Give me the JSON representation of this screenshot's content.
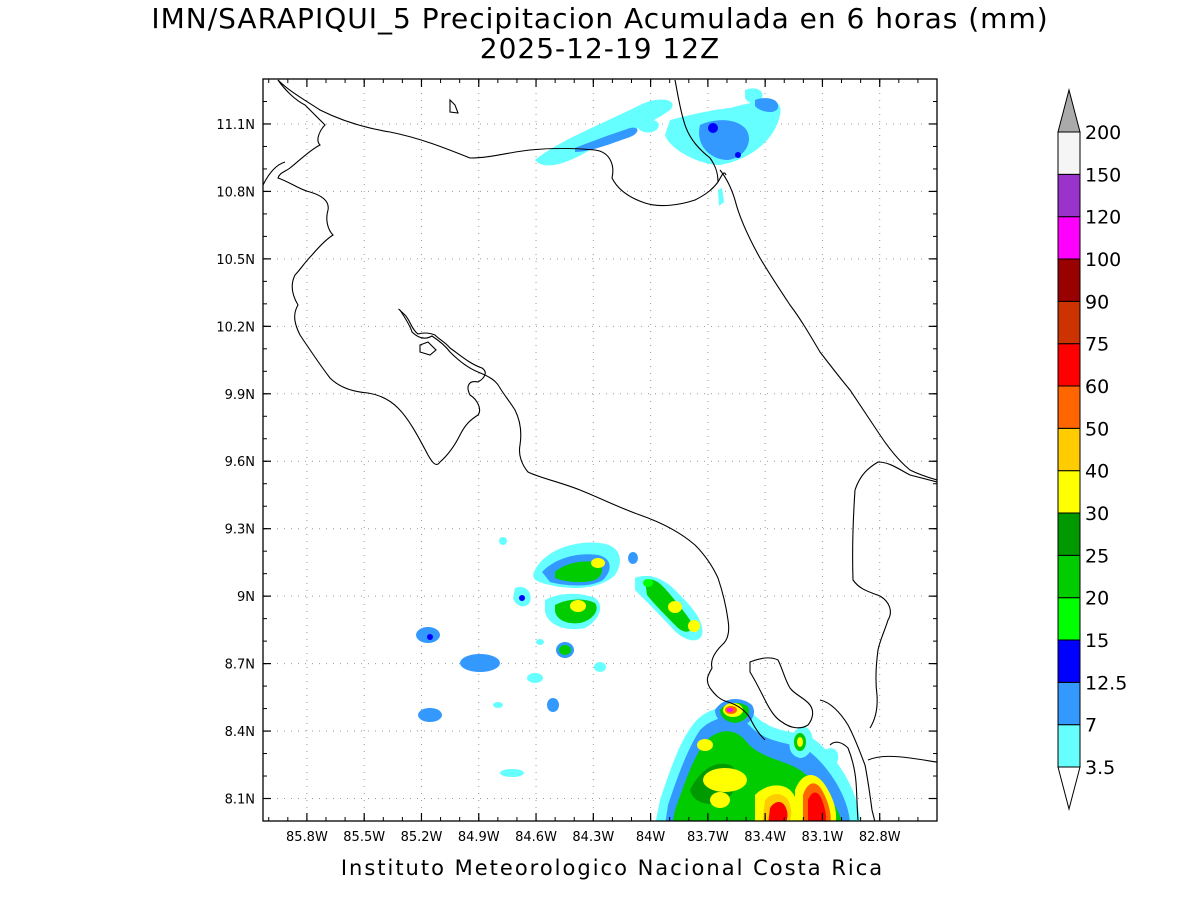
{
  "title": {
    "line1": "IMN/SARAPIQUI_5 Precipitacion Acumulada en 6 horas (mm)",
    "line2": "2025-12-19 12Z"
  },
  "footer": "Instituto Meteorologico Nacional Costa Rica",
  "map": {
    "lon_range": [
      -86.03,
      -82.5
    ],
    "lat_range": [
      8.0,
      11.3
    ],
    "lon_ticks": [
      {
        "value": -85.8,
        "label": "85.8W"
      },
      {
        "value": -85.5,
        "label": "85.5W"
      },
      {
        "value": -85.2,
        "label": "85.2W"
      },
      {
        "value": -84.9,
        "label": "84.9W"
      },
      {
        "value": -84.6,
        "label": "84.6W"
      },
      {
        "value": -84.3,
        "label": "84.3W"
      },
      {
        "value": -84.0,
        "label": "84W"
      },
      {
        "value": -83.7,
        "label": "83.7W"
      },
      {
        "value": -83.4,
        "label": "83.4W"
      },
      {
        "value": -83.1,
        "label": "83.1W"
      },
      {
        "value": -82.8,
        "label": "82.8W"
      }
    ],
    "lat_ticks": [
      {
        "value": 8.1,
        "label": "8.1N"
      },
      {
        "value": 8.4,
        "label": "8.4N"
      },
      {
        "value": 8.7,
        "label": "8.7N"
      },
      {
        "value": 9.0,
        "label": "9N"
      },
      {
        "value": 9.3,
        "label": "9.3N"
      },
      {
        "value": 9.6,
        "label": "9.6N"
      },
      {
        "value": 9.9,
        "label": "9.9N"
      },
      {
        "value": 10.2,
        "label": "10.2N"
      },
      {
        "value": 10.5,
        "label": "10.5N"
      },
      {
        "value": 10.8,
        "label": "10.8N"
      },
      {
        "value": 11.1,
        "label": "11.1N"
      }
    ],
    "gridlines": true
  },
  "colorbar": {
    "labels": [
      "3.5",
      "7",
      "12.5",
      "15",
      "20",
      "25",
      "30",
      "40",
      "50",
      "60",
      "75",
      "90",
      "100",
      "120",
      "150",
      "200"
    ],
    "colors": [
      "#66ffff",
      "#3399ff",
      "#0000ff",
      "#00ff00",
      "#00cc00",
      "#009900",
      "#ffff00",
      "#ffcc00",
      "#ff6600",
      "#ff0000",
      "#cc3300",
      "#990000",
      "#ff00ff",
      "#9933cc",
      "#f5f5f5"
    ],
    "top_arrow_color": "#aaaaaa",
    "bottom_arrow_color": "#ffffff"
  }
}
